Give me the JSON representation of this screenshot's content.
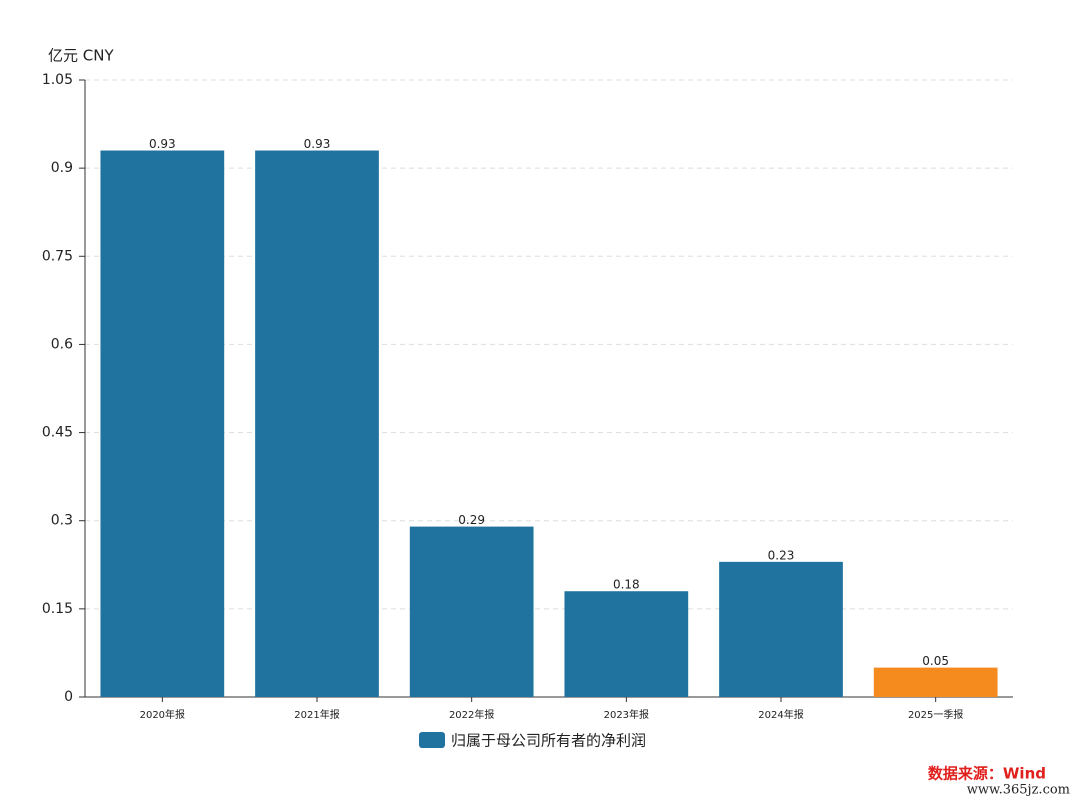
{
  "chart_data": {
    "type": "bar",
    "y_unit_label": "亿元  CNY",
    "categories": [
      "2020年报",
      "2021年报",
      "2022年报",
      "2023年报",
      "2024年报",
      "2025一季报"
    ],
    "series": [
      {
        "name": "归属于母公司所有者的净利润",
        "color": "#21739f",
        "values": [
          0.93,
          0.93,
          0.29,
          0.18,
          0.23,
          0.05
        ],
        "colors": [
          "#21739f",
          "#21739f",
          "#21739f",
          "#21739f",
          "#21739f",
          "#f58a1f"
        ]
      }
    ],
    "ylim": [
      0,
      1.05
    ],
    "yticks": [
      0,
      0.15,
      0.3,
      0.45,
      0.6,
      0.75,
      0.9,
      1.05
    ],
    "grid": true,
    "legend": "bottom",
    "source": "数据来源：Wind",
    "source_color": "#e0201c",
    "watermark": "www.365jz.com"
  }
}
